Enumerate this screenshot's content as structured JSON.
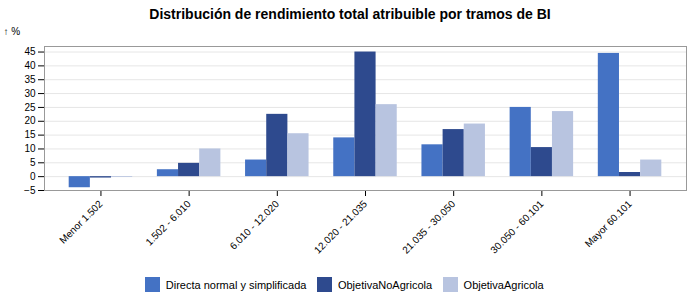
{
  "chart_data": {
    "type": "bar",
    "title": "Distribución de rendimiento total atribuible por tramos de BI",
    "ylabel": "%",
    "categories": [
      "Menor 1.502",
      "1.502 - 6.010",
      "6.010 - 12.020",
      "12.020 - 21.035",
      "21.035 - 30.050",
      "30.050 - 60.101",
      "Mayor 60.101"
    ],
    "series": [
      {
        "name": "Directa normal y simplificada",
        "color": "#4472C4",
        "values": [
          -4.0,
          2.5,
          6.0,
          14.0,
          11.5,
          25.0,
          44.5
        ]
      },
      {
        "name": "ObjetivaNoAgricola",
        "color": "#2E4A8E",
        "values": [
          -0.5,
          4.8,
          22.5,
          45.0,
          17.0,
          10.5,
          1.5
        ]
      },
      {
        "name": "ObjetivaAgricola",
        "color": "#B8C4E0",
        "values": [
          -0.3,
          10.0,
          15.5,
          26.0,
          19.0,
          23.5,
          6.0
        ]
      }
    ],
    "ylim": [
      -5,
      47
    ],
    "yticks": [
      -5,
      0,
      5,
      10,
      15,
      20,
      25,
      30,
      35,
      40,
      45
    ],
    "grid": true,
    "legend": "bottom"
  }
}
